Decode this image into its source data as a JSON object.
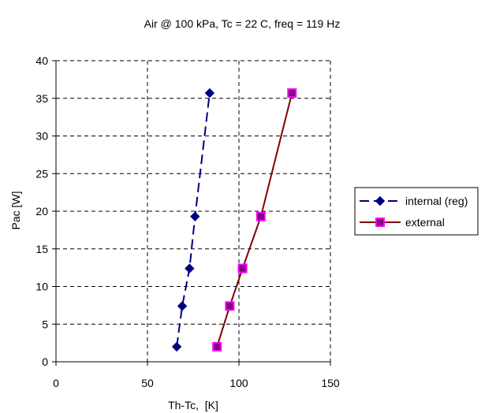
{
  "chart_data": {
    "type": "line",
    "title": "Air @ 100 kPa, Tc = 22 C, freq = 119 Hz",
    "xlabel": "Th-Tc,  [K]",
    "ylabel": "Pac [W]",
    "xlim": [
      0,
      150
    ],
    "ylim": [
      0,
      40
    ],
    "xticks": [
      0,
      50,
      100,
      150
    ],
    "yticks": [
      0,
      5,
      10,
      15,
      20,
      25,
      30,
      35,
      40
    ],
    "grid": true,
    "legend_position": "right",
    "series": [
      {
        "name": "internal (reg)",
        "color": "#000080",
        "line_style": "dashed",
        "marker": "diamond",
        "x": [
          66,
          69,
          73,
          76,
          84
        ],
        "y": [
          2,
          7.4,
          12.4,
          19.3,
          35.7
        ]
      },
      {
        "name": "external",
        "color": "#800000",
        "marker_fill": "#800080",
        "marker_edge": "#FF00FF",
        "line_style": "solid",
        "marker": "square",
        "x": [
          88,
          95,
          102,
          112,
          129
        ],
        "y": [
          2,
          7.4,
          12.4,
          19.3,
          35.7
        ]
      }
    ]
  }
}
